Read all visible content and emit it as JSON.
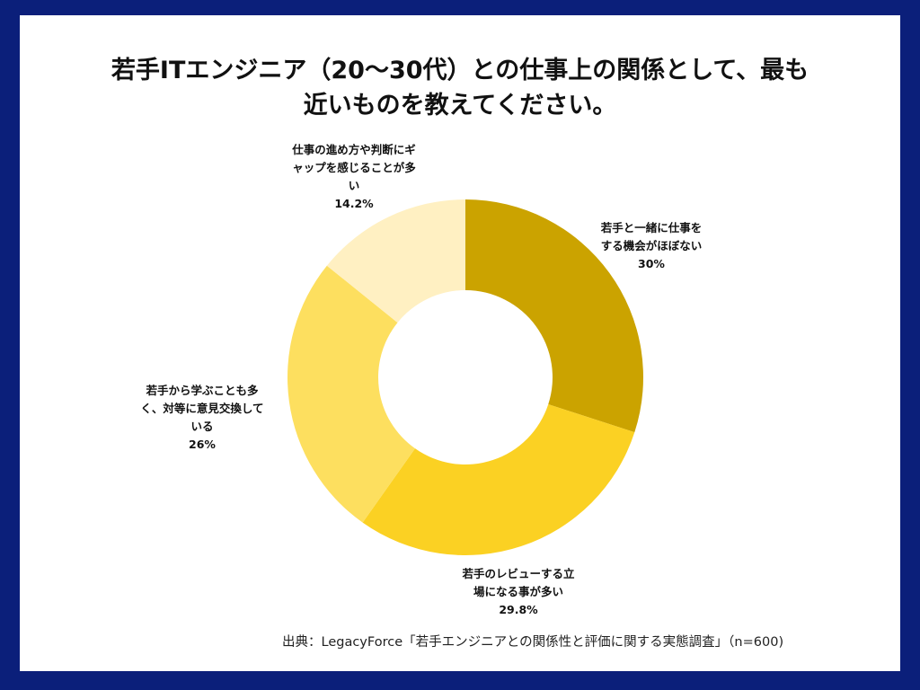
{
  "title_line1": "若手ITエンジニア（20〜30代）との仕事上の関係として、最も",
  "title_line2": "近いものを教えてください。",
  "source": "出典：LegacyForce「若手エンジニアとの関係性と評価に関する実態調査」（n=600)",
  "chart_data": {
    "type": "pie",
    "variant": "donut",
    "slices": [
      {
        "label_lines": [
          "若手と一緒に仕事を",
          "する機会がほぼない"
        ],
        "value": 30,
        "value_label": "30%",
        "color": "#cba300"
      },
      {
        "label_lines": [
          "若手のレビューする立",
          "場になる事が多い"
        ],
        "value": 29.8,
        "value_label": "29.8%",
        "color": "#fbd123"
      },
      {
        "label_lines": [
          "若手から学ぶことも多",
          "く、対等に意見交換して",
          "いる"
        ],
        "value": 26,
        "value_label": "26%",
        "color": "#fddf5f"
      },
      {
        "label_lines": [
          "仕事の進め方や判断にギ",
          "ャップを感じることが多",
          "い"
        ],
        "value": 14.2,
        "value_label": "14.2%",
        "color": "#fff0c2"
      }
    ]
  }
}
